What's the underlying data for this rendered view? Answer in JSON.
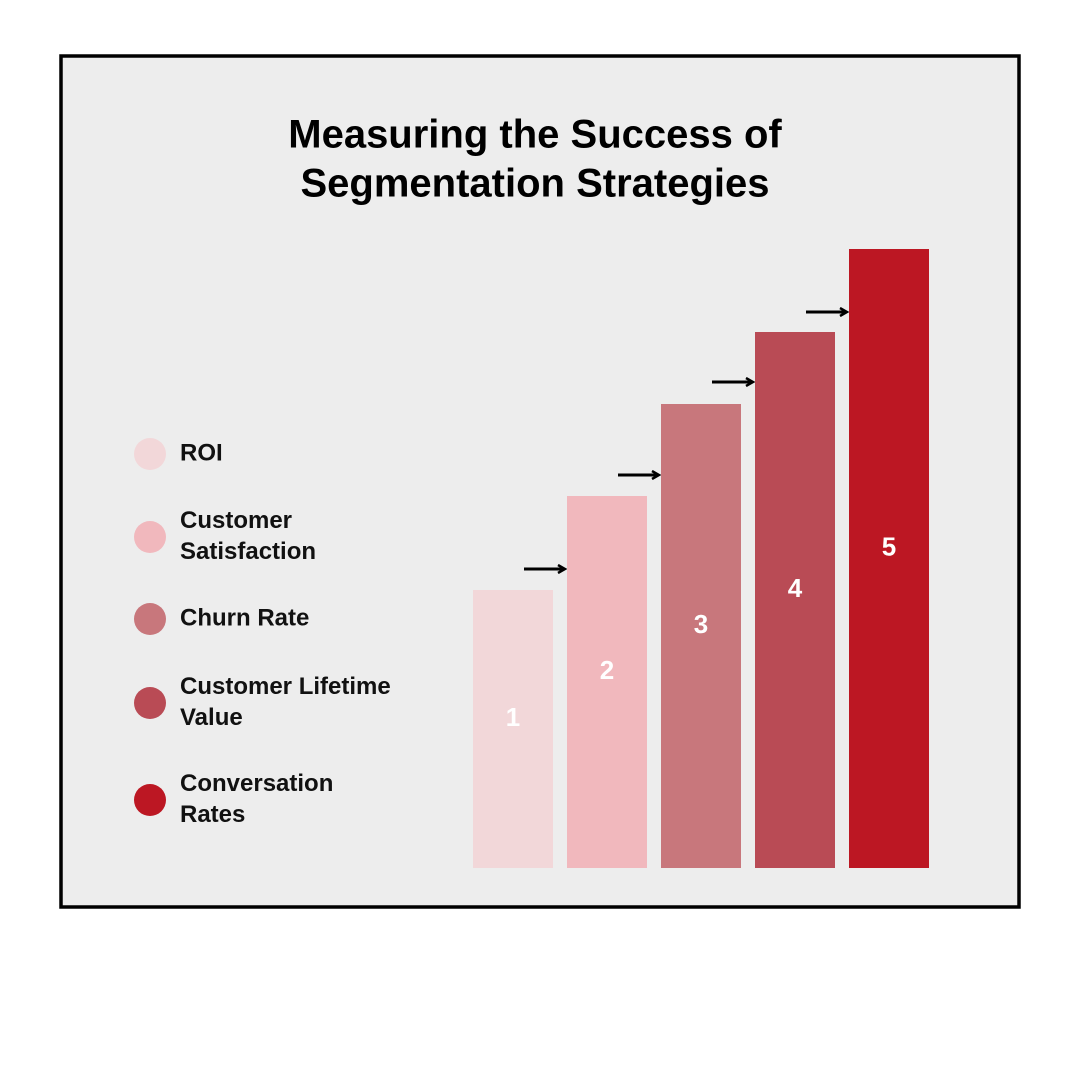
{
  "title": {
    "lines": [
      "Measuring the Success of",
      "Segmentation Strategies"
    ]
  },
  "legend": [
    {
      "lines": [
        "ROI"
      ],
      "color": "#f2d7d9"
    },
    {
      "lines": [
        "Customer",
        "Satisfaction"
      ],
      "color": "#f1b8bd"
    },
    {
      "lines": [
        "Churn Rate"
      ],
      "color": "#c8777c"
    },
    {
      "lines": [
        "Customer Lifetime",
        "Value"
      ],
      "color": "#b94b55"
    },
    {
      "lines": [
        "Conversation",
        "Rates"
      ],
      "color": "#bc1723"
    }
  ],
  "steps": [
    {
      "label": "1",
      "color": "#f2d7d9"
    },
    {
      "label": "2",
      "color": "#f1b8bd"
    },
    {
      "label": "3",
      "color": "#c8777c"
    },
    {
      "label": "4",
      "color": "#b94b55"
    },
    {
      "label": "5",
      "color": "#bc1723"
    }
  ]
}
